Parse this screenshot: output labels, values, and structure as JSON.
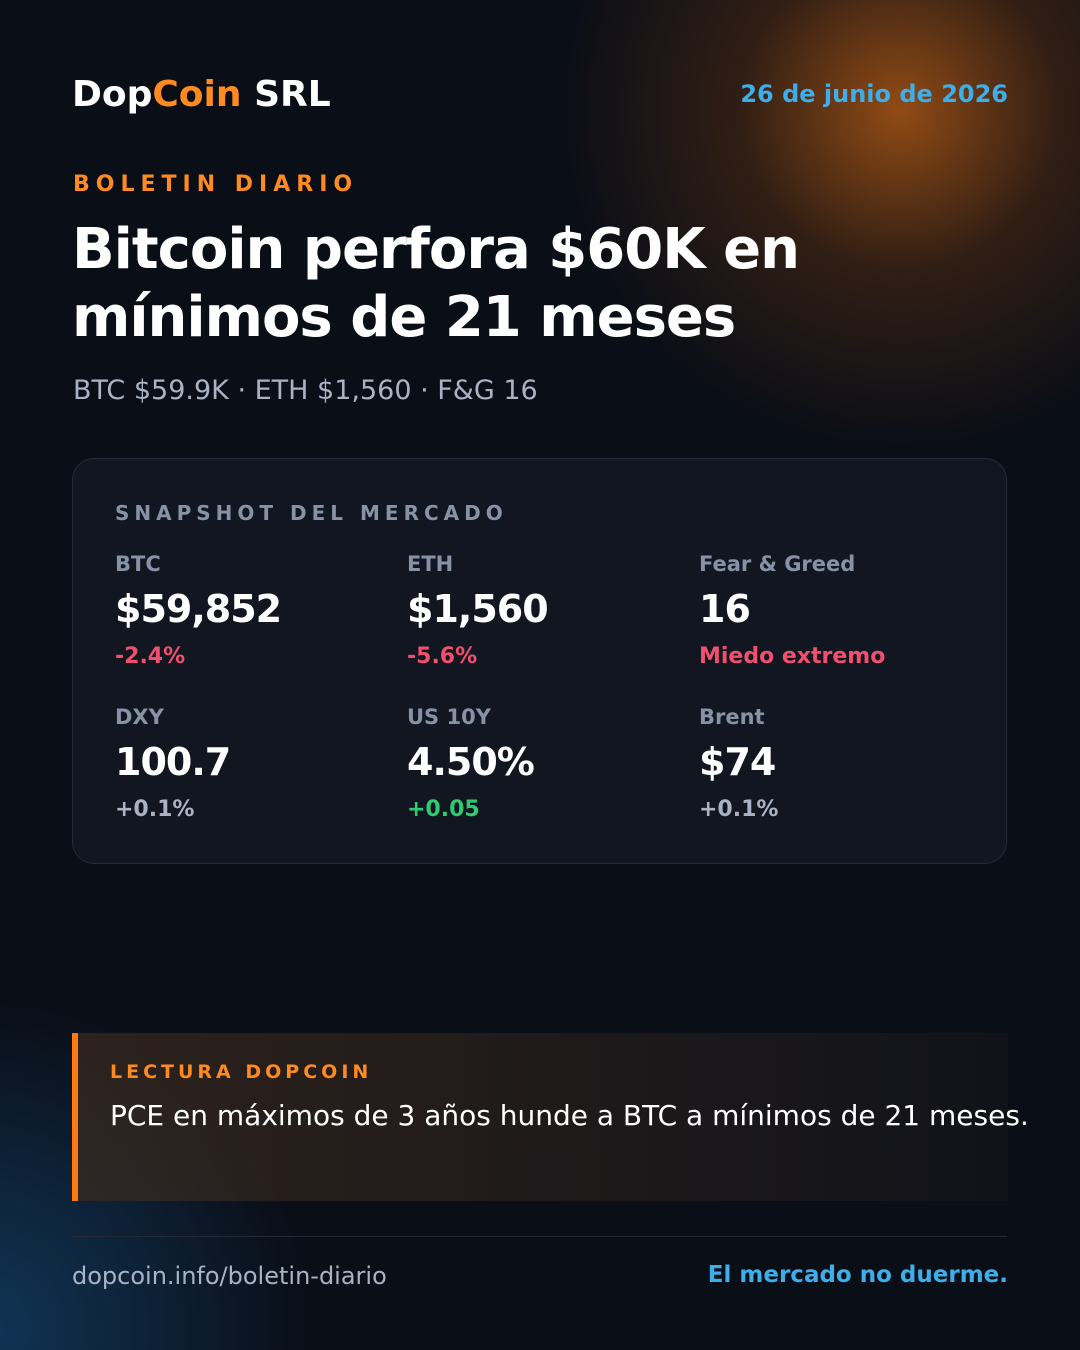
{
  "header": {
    "brand": {
      "prefix": "Dop",
      "highlight": "Coin",
      "suffix": "SRL"
    },
    "date": "26 de junio de 2026"
  },
  "kicker": "BOLETIN DIARIO",
  "headline": [
    "Bitcoin perfora $60K en",
    "mínimos de 21 meses"
  ],
  "subline": "BTC $59.9K · ETH $1,560 · F&G 16",
  "snapshot": {
    "title": "SNAPSHOT DEL MERCADO",
    "metrics": [
      {
        "label": "BTC",
        "value": "$59,852",
        "change": "-2.4%",
        "color": "#f0506e"
      },
      {
        "label": "ETH",
        "value": "$1,560",
        "change": "-5.6%",
        "color": "#f0506e"
      },
      {
        "label": "Fear & Greed",
        "value": "16",
        "change": "Miedo extremo",
        "color": "#f0506e"
      },
      {
        "label": "DXY",
        "value": "100.7",
        "change": "+0.1%",
        "color": "#a9b3c4"
      },
      {
        "label": "US 10Y",
        "value": "4.50%",
        "change": "+0.05",
        "color": "#2ecc71"
      },
      {
        "label": "Brent",
        "value": "$74",
        "change": "+0.1%",
        "color": "#a9b3c4"
      }
    ]
  },
  "note": {
    "kicker": "LECTURA DOPCOIN",
    "text": "PCE en máximos de 3 años hunde a BTC a mínimos de 21 meses."
  },
  "footer": {
    "url": "dopcoin.info/boletin-diario",
    "tagline": "El mercado no duerme."
  }
}
